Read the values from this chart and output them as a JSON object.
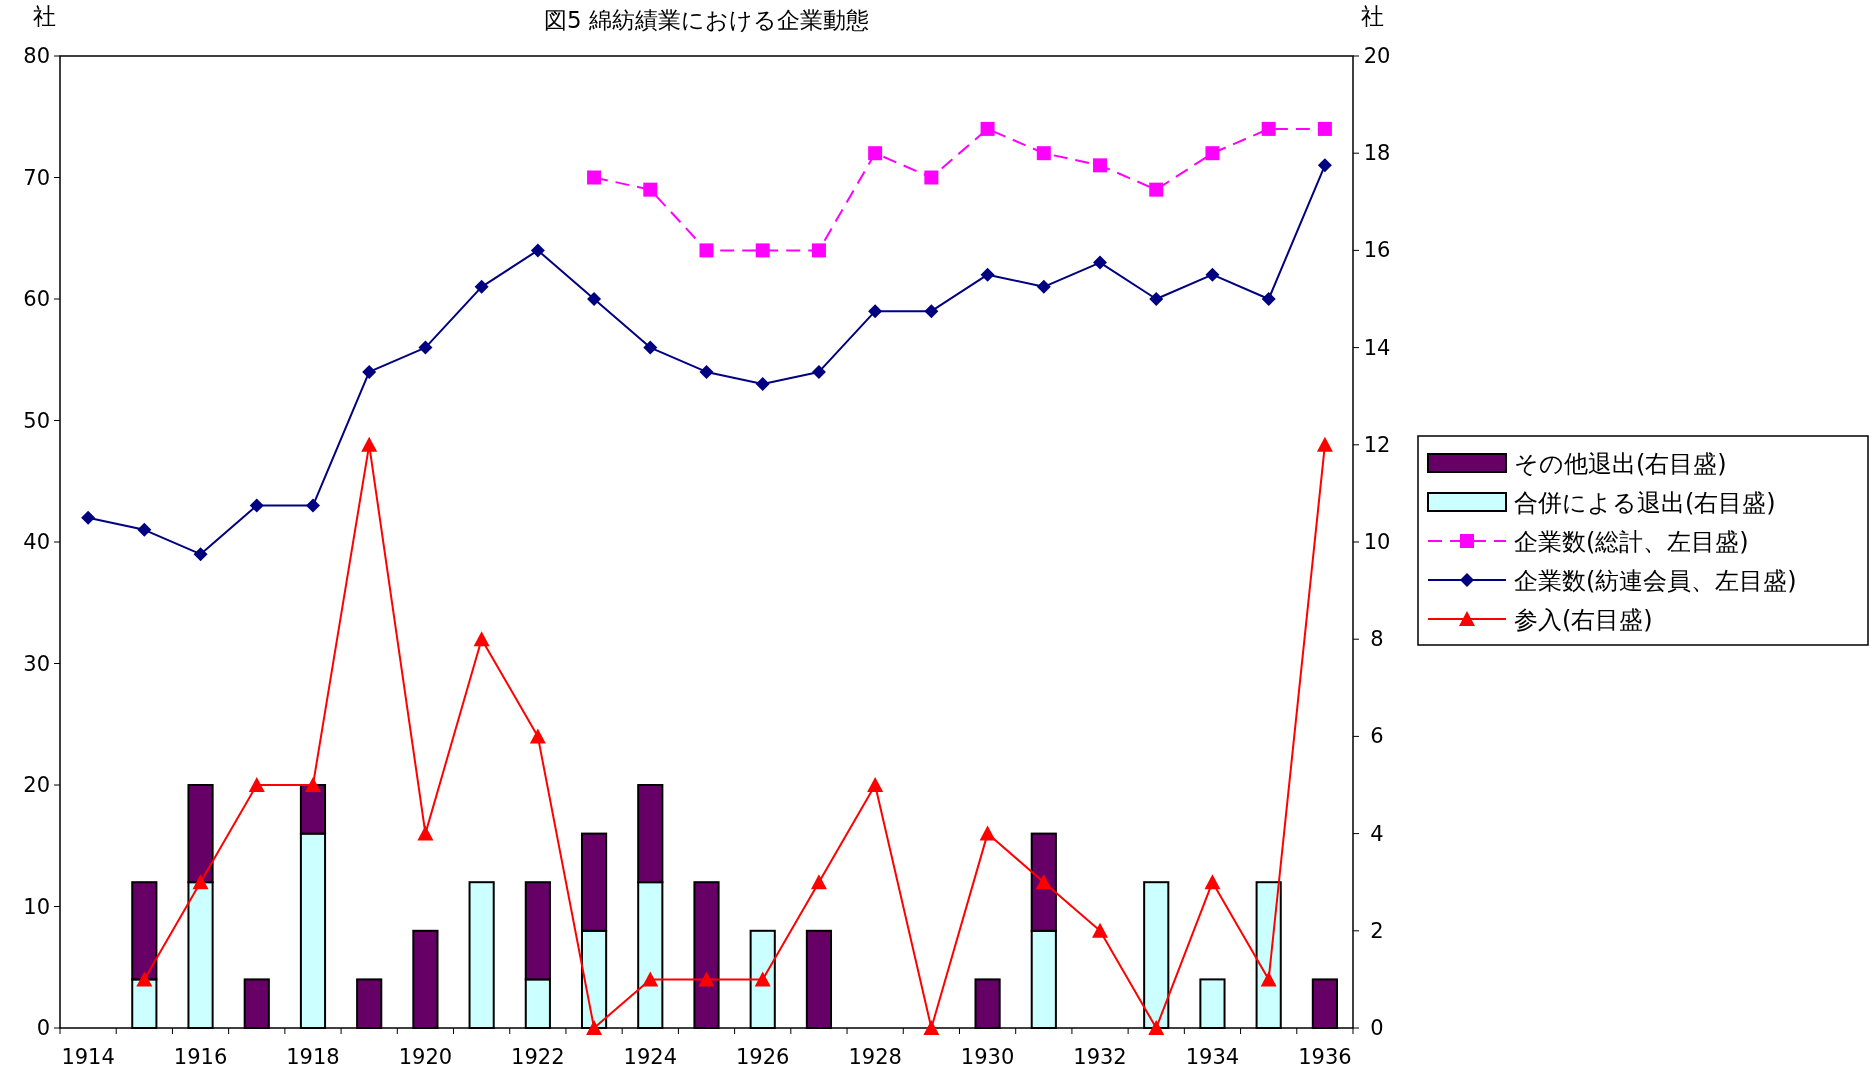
{
  "chart_data": {
    "type": "bar",
    "title": "図5 綿紡績業における企業動態",
    "ylabel": "社",
    "y2label": "社",
    "stacked": true,
    "legend": "right",
    "grid": false,
    "categories": [
      "1914",
      null,
      "1916",
      null,
      "1918",
      null,
      "1920",
      null,
      "1922",
      null,
      "1924",
      null,
      "1926",
      null,
      "1928",
      null,
      "1930",
      null,
      "1932",
      null,
      "1934",
      null,
      "1936"
    ],
    "ylim": [
      0,
      80
    ],
    "yticks": [
      0,
      10,
      20,
      30,
      40,
      50,
      60,
      70,
      80
    ],
    "y2lim": [
      0,
      20
    ],
    "y2ticks": [
      0,
      2,
      4,
      6,
      8,
      10,
      12,
      14,
      16,
      18,
      20
    ],
    "series": [
      {
        "name": "合併による退出(右目盛)",
        "axis": "y2",
        "color": "#ccffff",
        "values": [
          0,
          1,
          3,
          0,
          4,
          0,
          0,
          3,
          1,
          2,
          3,
          0,
          2,
          0,
          0,
          0,
          0,
          2,
          0,
          3,
          1,
          3,
          0
        ]
      },
      {
        "name": "その他退出(右目盛)",
        "axis": "y2",
        "color": "#660066",
        "values": [
          0,
          2,
          2,
          1,
          1,
          1,
          2,
          0,
          2,
          2,
          2,
          3,
          0,
          2,
          0,
          0,
          1,
          2,
          0,
          0,
          0,
          0,
          1
        ]
      },
      {
        "name": "企業数(総計、左目盛)",
        "type": "line",
        "axis": "y",
        "color": "#ff00ff",
        "marker": "square",
        "line_style": "dashed",
        "values": [
          null,
          null,
          null,
          null,
          null,
          null,
          null,
          null,
          null,
          70,
          69,
          64,
          64,
          64,
          72,
          70,
          74,
          72,
          71,
          69,
          72,
          74,
          74
        ]
      },
      {
        "name": "企業数(紡連会員、左目盛)",
        "type": "line",
        "axis": "y",
        "color": "#000080",
        "marker": "diamond",
        "line_style": "solid",
        "values": [
          42,
          41,
          39,
          43,
          43,
          54,
          56,
          61,
          64,
          60,
          56,
          54,
          53,
          54,
          59,
          59,
          62,
          61,
          63,
          60,
          62,
          60,
          71
        ]
      },
      {
        "name": "参入(右目盛)",
        "type": "line",
        "axis": "y2",
        "color": "#ff0000",
        "marker": "triangle",
        "line_style": "solid",
        "values": [
          null,
          1,
          3,
          5,
          5,
          12,
          4,
          8,
          6,
          0,
          1,
          1,
          1,
          3,
          5,
          0,
          4,
          3,
          2,
          0,
          3,
          1,
          12
        ]
      }
    ]
  }
}
